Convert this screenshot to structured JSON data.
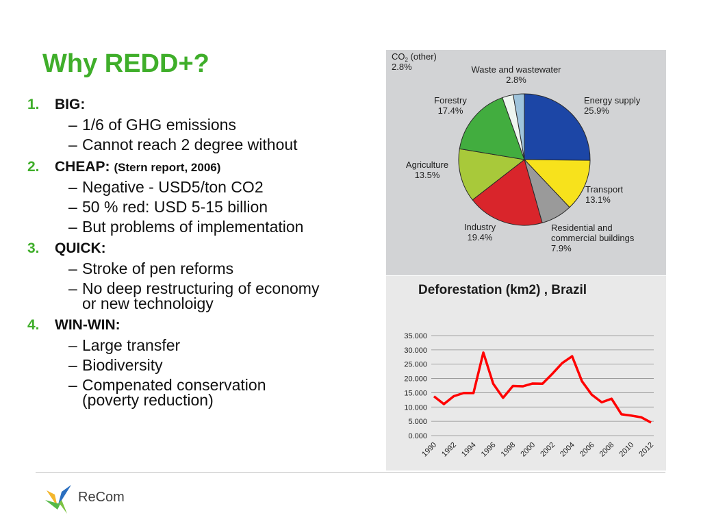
{
  "title": "Why REDD+?",
  "sections": [
    {
      "num": "1.",
      "label": "BIG:",
      "note": "",
      "items": [
        "1/6 of GHG emissions",
        "Cannot reach 2 degree without"
      ]
    },
    {
      "num": "2.",
      "label": "CHEAP:",
      "note": "(Stern report, 2006)",
      "items": [
        "Negative - USD5/ton CO2",
        "50 % red: USD 5-15 billion",
        "But problems of implementation"
      ]
    },
    {
      "num": "3.",
      "label": "QUICK:",
      "note": "",
      "items": [
        "Stroke of pen reforms",
        "No deep restructuring of economy or new technoloigy"
      ]
    },
    {
      "num": "4.",
      "label": "WIN-WIN:",
      "note": "",
      "items": [
        "Large transfer",
        "Biodiversity",
        "Compenated conservation (poverty reduction)"
      ]
    }
  ],
  "chart_data": [
    {
      "type": "pie",
      "title": "",
      "slices": [
        {
          "name": "Energy supply",
          "value": 25.9,
          "label": "25.9%",
          "color": "#1c46a6"
        },
        {
          "name": "Transport",
          "value": 13.1,
          "label": "13.1%",
          "color": "#f7e21c"
        },
        {
          "name": "Residential and commercial buildings",
          "value": 7.9,
          "label": "7.9%",
          "color": "#9a9a9a"
        },
        {
          "name": "Industry",
          "value": 19.4,
          "label": "19.4%",
          "color": "#d9252b"
        },
        {
          "name": "Agriculture",
          "value": 13.5,
          "label": "13.5%",
          "color": "#a8c93a"
        },
        {
          "name": "Forestry",
          "value": 17.4,
          "label": "17.4%",
          "color": "#42ad3f"
        },
        {
          "name": "Waste and wastewater",
          "value": 2.8,
          "label": "2.8%",
          "color": "#eef5f0"
        },
        {
          "name": "CO2 (other)",
          "value": 2.8,
          "label": "2.8%",
          "color": "#9fc4dc"
        }
      ]
    },
    {
      "type": "line",
      "title": "Deforestation (km2) , Brazil",
      "xlabel": "",
      "ylabel": "",
      "x": [
        1990,
        1991,
        1992,
        1993,
        1994,
        1995,
        1996,
        1997,
        1998,
        1999,
        2000,
        2001,
        2002,
        2003,
        2004,
        2005,
        2006,
        2007,
        2008,
        2009,
        2010,
        2011,
        2012
      ],
      "y": [
        13730,
        11030,
        13786,
        14896,
        14896,
        29059,
        18161,
        13227,
        17383,
        17259,
        18226,
        18165,
        21651,
        25396,
        27772,
        19014,
        14286,
        11651,
        12911,
        7464,
        7000,
        6418,
        4571
      ],
      "x_tick_labels": [
        "1990",
        "1992",
        "1994",
        "1996",
        "1998",
        "2000",
        "2002",
        "2004",
        "2006",
        "2008",
        "2010",
        "2012"
      ],
      "y_tick_labels": [
        "0.000",
        "5.000",
        "10.000",
        "15.000",
        "20.000",
        "25.000",
        "30.000",
        "35.000"
      ],
      "ylim": [
        0,
        35000
      ],
      "grid": true,
      "line_color": "#ff0000"
    }
  ],
  "logo": {
    "text": "ReCom"
  }
}
